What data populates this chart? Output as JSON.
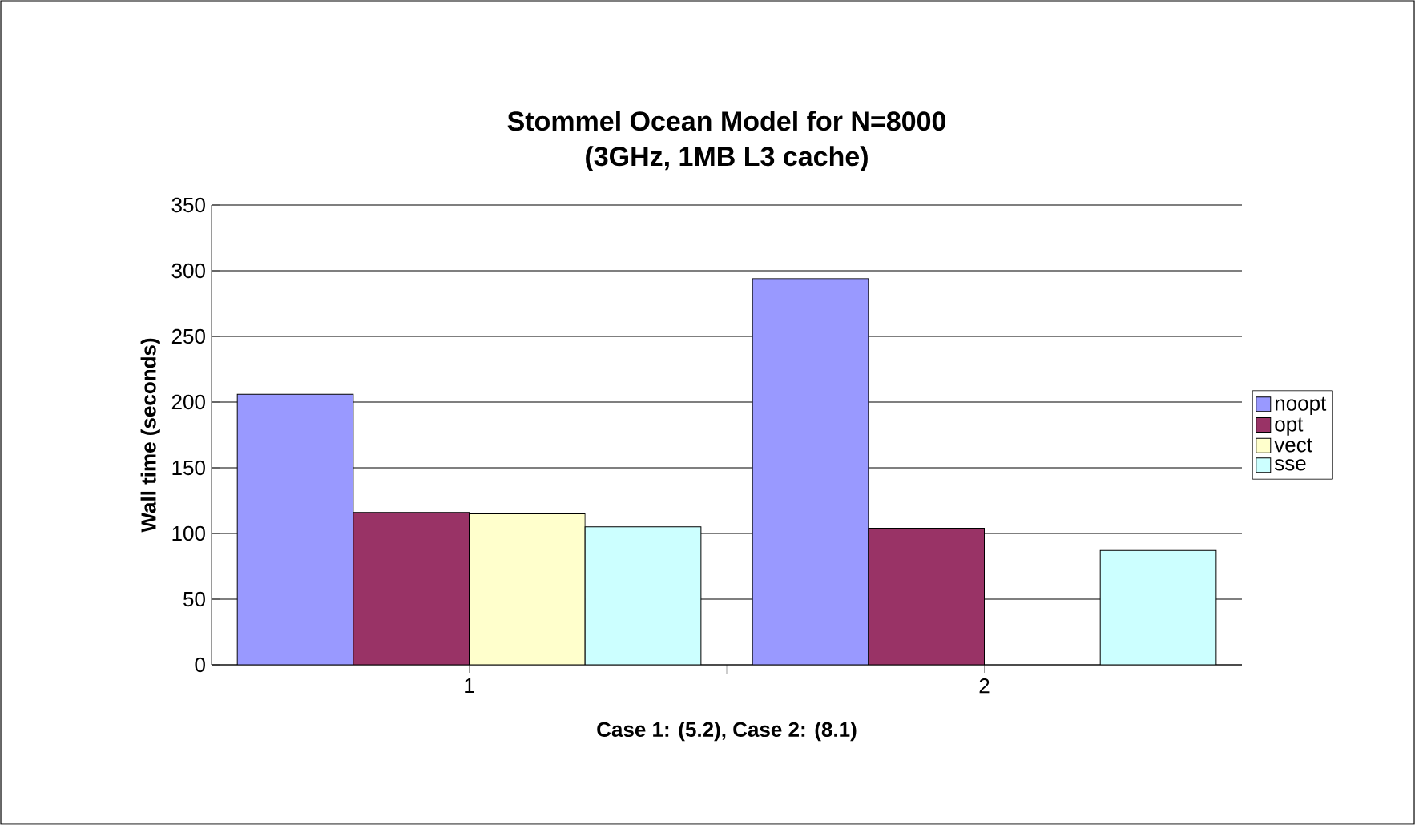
{
  "chart_data": {
    "type": "bar",
    "title": "Stommel Ocean Model for N=8000",
    "subtitle": "(3GHz, 1MB L3 cache)",
    "xlabel": "Case 1: (5.2), Case 2: (8.1)",
    "ylabel": "Wall time (seconds)",
    "categories": [
      "1",
      "2"
    ],
    "series": [
      {
        "name": "noopt",
        "color": "#9999ff",
        "values": [
          206,
          294
        ]
      },
      {
        "name": "opt",
        "color": "#993366",
        "values": [
          116,
          104
        ]
      },
      {
        "name": "vect",
        "color": "#ffffcc",
        "values": [
          115,
          null
        ]
      },
      {
        "name": "sse",
        "color": "#ccffff",
        "values": [
          105,
          87
        ]
      }
    ],
    "ylim": [
      0,
      350
    ],
    "yticks": [
      0,
      50,
      100,
      150,
      200,
      250,
      300,
      350
    ],
    "grid": "y",
    "legend": "right"
  }
}
